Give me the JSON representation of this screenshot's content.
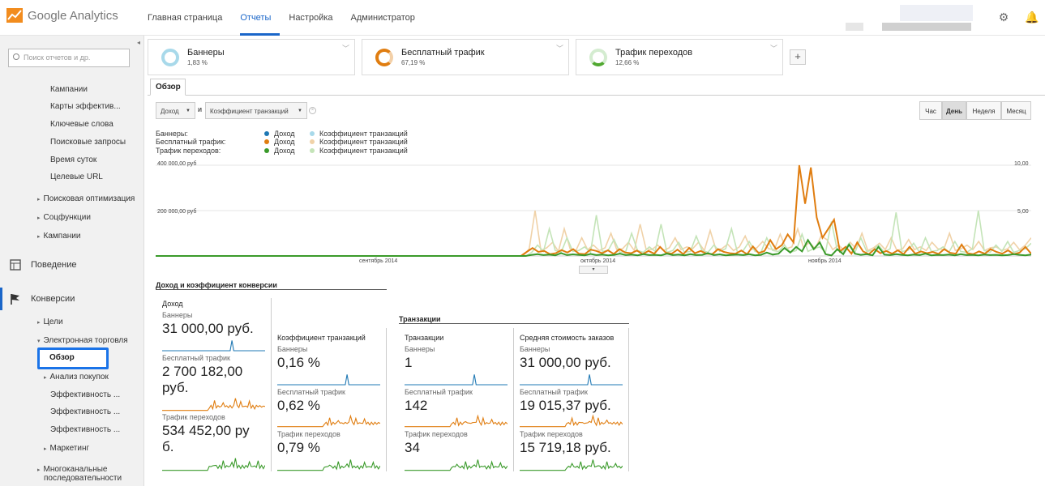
{
  "app": {
    "title": "Google Analytics"
  },
  "nav": {
    "items": [
      "Главная страница",
      "Отчеты",
      "Настройка",
      "Администратор"
    ]
  },
  "sidebar": {
    "search_placeholder": "Поиск отчетов и др.",
    "sub1": [
      "Кампании",
      "Карты эффектив...",
      "Ключевые слова",
      "Поисковые запросы",
      "Время суток",
      "Целевые URL"
    ],
    "groups": [
      "Поисковая оптимизация",
      "Соцфункции",
      "Кампании"
    ],
    "behavior": "Поведение",
    "conversions": "Конверсии",
    "goals": "Цели",
    "ecommerce": "Электронная торговля",
    "selected": "Обзор",
    "shopping": "Анализ покупок",
    "eff": [
      "Эффективность ...",
      "Эффективность ...",
      "Эффективность ..."
    ],
    "marketing": "Маркетинг",
    "multichannel_1": "Многоканальные",
    "multichannel_2": "последовательности"
  },
  "segments": [
    {
      "name": "Баннеры",
      "value": "1,83 %",
      "color": "#a8d9ea"
    },
    {
      "name": "Бесплатный трафик",
      "value": "67,19 %",
      "color": "#e07d10"
    },
    {
      "name": "Трафик переходов",
      "value": "12,66 %",
      "color": "#50a830"
    }
  ],
  "tab": "Обзор",
  "controls": {
    "metric1": "Доход",
    "and": "и",
    "metric2": "Коэффициент транзакций",
    "periods": [
      "Час",
      "День",
      "Неделя",
      "Месяц"
    ],
    "active_period": "День"
  },
  "legend": {
    "rows": [
      "Баннеры:",
      "Бесплатный трафик:",
      "Трафик переходов:"
    ],
    "m1": "Доход",
    "m2": "Коэффициент транзакций"
  },
  "chart_data": {
    "type": "line",
    "y_left": [
      "400 000,00 руб",
      "200 000,00 руб"
    ],
    "y_right": [
      "10,00",
      "5,00"
    ],
    "x_labels": [
      "сентябрь 2014",
      "октябрь 2014",
      "ноябрь 2014"
    ],
    "series": [
      {
        "name": "Доход",
        "segment": "Бесплатный трафик",
        "color": "#e07d10",
        "values": [
          0,
          0,
          0,
          0,
          0,
          0,
          0,
          0,
          0,
          0,
          0,
          0,
          0,
          0,
          0,
          0,
          0,
          0,
          0,
          0,
          0,
          0,
          0,
          0,
          0,
          0,
          0,
          0,
          0,
          0,
          0,
          0,
          0,
          0,
          0,
          0,
          0,
          0,
          0,
          0,
          0,
          0,
          0,
          0,
          0,
          0,
          0,
          0,
          0,
          0,
          0,
          0,
          0,
          0,
          0,
          0,
          0,
          0,
          0,
          0,
          0,
          0,
          0,
          0,
          18000,
          35000,
          18000,
          22000,
          8000,
          12000,
          26000,
          15000,
          30000,
          10000,
          8000,
          28000,
          22000,
          12000,
          25000,
          9000,
          30000,
          15000,
          12000,
          24000,
          8000,
          22000,
          10000,
          40000,
          14000,
          10000,
          28000,
          8000,
          35000,
          12000,
          22000,
          10000,
          8000,
          30000,
          18000,
          12000,
          10000,
          24000,
          8000,
          42000,
          12000,
          22000,
          70000,
          30000,
          48000,
          95000,
          60000,
          400000,
          230000,
          390000,
          170000,
          80000,
          120000,
          160000,
          20000,
          40000,
          10000,
          60000,
          20000,
          8000,
          30000,
          12000,
          22000,
          10000,
          25000,
          8000,
          40000,
          10000,
          20000,
          12000,
          18000,
          9000,
          30000,
          14000,
          10000,
          50000,
          12000,
          8000,
          20000,
          10000,
          30000,
          18000,
          10000,
          25000,
          8000,
          15000,
          40000,
          10000
        ]
      },
      {
        "name": "Доход",
        "segment": "Трафик переходов",
        "color": "#3a9a2a",
        "values": [
          0,
          0,
          0,
          0,
          0,
          0,
          0,
          0,
          0,
          0,
          0,
          0,
          0,
          0,
          0,
          0,
          0,
          0,
          0,
          0,
          0,
          0,
          0,
          0,
          0,
          0,
          0,
          0,
          0,
          0,
          0,
          0,
          0,
          0,
          0,
          0,
          0,
          0,
          0,
          0,
          0,
          0,
          0,
          0,
          0,
          0,
          0,
          0,
          0,
          0,
          0,
          0,
          0,
          0,
          0,
          0,
          0,
          0,
          0,
          0,
          0,
          0,
          0,
          0,
          5000,
          8000,
          4000,
          6000,
          3000,
          12000,
          4000,
          7000,
          5000,
          3000,
          9000,
          4000,
          6000,
          3000,
          5000,
          10000,
          4000,
          6000,
          3000,
          8000,
          4000,
          5000,
          3000,
          10000,
          4000,
          6000,
          3000,
          8000,
          4000,
          5000,
          12000,
          4000,
          7000,
          3000,
          5000,
          6000,
          4000,
          8000,
          3000,
          5000,
          15000,
          6000,
          10000,
          35000,
          15000,
          40000,
          20000,
          70000,
          30000,
          60000,
          8000,
          2000,
          30000,
          8000,
          50000,
          10000,
          5000,
          8000,
          3000,
          40000,
          6000,
          4000,
          8000,
          5000,
          3000,
          6000,
          4000,
          10000,
          3000,
          5000,
          4000,
          6000,
          3000,
          8000,
          4000,
          5000,
          3000,
          6000,
          4000,
          5000,
          3000,
          4000,
          8000,
          5000,
          3000,
          6000
        ]
      },
      {
        "name": "Коэффициент транзакций",
        "segment": "Бесплатный трафик",
        "color": "#f0d2a8",
        "values": [
          0,
          0,
          0,
          0,
          0,
          0,
          0,
          0,
          0,
          0,
          0,
          0,
          0,
          0,
          0,
          0,
          0,
          0,
          0,
          0,
          0,
          0,
          0,
          0,
          0,
          0,
          0,
          0,
          0,
          0,
          0,
          0,
          0,
          0,
          0,
          0,
          0,
          0,
          0,
          0,
          0,
          0,
          0,
          0,
          0,
          0,
          0,
          0,
          0,
          0,
          0,
          0,
          0,
          0,
          0,
          0,
          0,
          0,
          0,
          0,
          0,
          0,
          0,
          0,
          0.8,
          5.0,
          0.6,
          0.9,
          1.5,
          0.5,
          3.0,
          0.8,
          0.6,
          2.0,
          0.7,
          1.2,
          0.6,
          0.9,
          2.5,
          0.7,
          0.8,
          1.5,
          0.6,
          3.5,
          0.8,
          0.7,
          1.2,
          0.6,
          0.9,
          2.0,
          0.7,
          1.0,
          0.8,
          1.5,
          0.6,
          2.8,
          0.7,
          0.8,
          1.3,
          0.6,
          1.0,
          2.2,
          0.7,
          0.9,
          1.6,
          0.8,
          0.7,
          2.4,
          0.8,
          1.0,
          3.0,
          0.9,
          1.5,
          0.8,
          2.2,
          1.8,
          0.7,
          1.2,
          0.6,
          1.5,
          0.8,
          2.5,
          0.6,
          0.9,
          1.4,
          0.7,
          2.0,
          0.6,
          0.8,
          1.8,
          0.7,
          1.0,
          0.6,
          1.5,
          0.8,
          0.7,
          2.5,
          0.6,
          0.8,
          1.2,
          0.7,
          1.6,
          0.6,
          0.9,
          1.0,
          0.6,
          0.8,
          1.5,
          0.7,
          1.2,
          2.0
        ]
      },
      {
        "name": "Коэффициент транзакций",
        "segment": "Трафик переходов",
        "color": "#c4e4b8",
        "values": [
          0,
          0,
          0,
          0,
          0,
          0,
          0,
          0,
          0,
          0,
          0,
          0,
          0,
          0,
          0,
          0,
          0,
          0,
          0,
          0,
          0,
          0,
          0,
          0,
          0,
          0,
          0,
          0,
          0,
          0,
          0,
          0,
          0,
          0,
          0,
          0,
          0,
          0,
          0,
          0,
          0,
          0,
          0,
          0,
          0,
          0,
          0,
          0,
          0,
          0,
          0,
          0,
          0,
          0,
          0,
          0,
          0,
          0,
          0,
          0,
          0,
          0,
          0,
          0,
          0.4,
          1.2,
          0.5,
          3.0,
          0.6,
          0.4,
          2.0,
          0.5,
          0.6,
          1.0,
          0.4,
          4.5,
          0.5,
          0.6,
          1.8,
          0.4,
          0.5,
          2.5,
          0.6,
          0.4,
          1.0,
          0.5,
          3.5,
          0.4,
          0.6,
          1.5,
          0.4,
          0.5,
          2.2,
          0.6,
          0.4,
          1.2,
          0.5,
          0.8,
          3.0,
          0.4,
          0.6,
          1.6,
          0.5,
          0.4,
          2.0,
          0.6,
          0.5,
          1.2,
          0.4,
          0.6,
          2.4,
          0.5,
          0.8,
          1.0,
          0.4,
          3.8,
          0.6,
          0.5,
          1.4,
          0.4,
          2.0,
          0.5,
          0.6,
          1.2,
          0.4,
          0.8,
          4.8,
          0.5,
          0.6,
          1.4,
          0.4,
          2.0,
          0.5,
          0.6,
          1.0,
          0.4,
          1.6,
          0.5,
          0.4,
          0.8,
          5.0,
          0.6,
          0.4,
          1.2,
          0.5,
          1.6,
          0.4,
          0.6,
          0.8,
          1.4
        ]
      }
    ]
  },
  "summary": {
    "title1": "Доход и коэффициент конверсии",
    "title2": "Транзакции",
    "seg_labels": [
      "Баннеры",
      "Бесплатный трафик",
      "Трафик переходов"
    ],
    "revenue": {
      "title": "Доход",
      "v1": "31 000,00 руб.",
      "v2a": "2 700 182,00",
      "v2b": "руб.",
      "v3a": "534 452,00 ру",
      "v3b": "б."
    },
    "conv": {
      "title": "Коэффициент транзакций",
      "v1": "0,16 %",
      "v2": "0,62 %",
      "v3": "0,79 %"
    },
    "trans": {
      "title": "Транзакции",
      "v1": "1",
      "v2": "142",
      "v3": "34"
    },
    "avg": {
      "title": "Средняя стоимость заказов",
      "v1": "31 000,00 руб.",
      "v2": "19 015,37 руб.",
      "v3": "15 719,18 руб."
    }
  },
  "colors": {
    "accent": "#1a66c9",
    "banner": "#1f78b4",
    "free": "#e07d10",
    "referral": "#3a9a2a"
  }
}
